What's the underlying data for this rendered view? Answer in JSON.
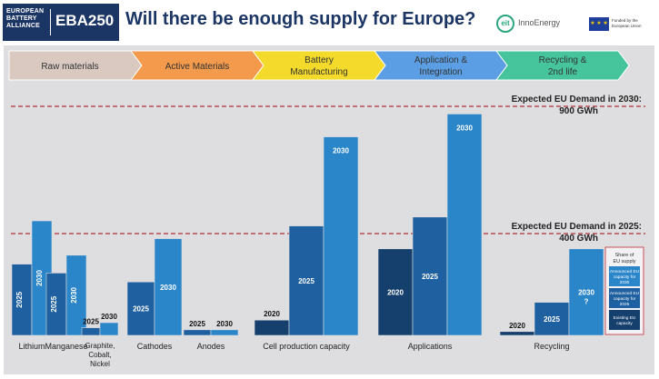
{
  "header": {
    "alliance_lines": [
      "EUROPEAN",
      "BATTERY",
      "ALLIANCE"
    ],
    "eba_label": "EBA250",
    "title": "Will there be enough supply for Europe?",
    "innoenergy_mark": "eit",
    "innoenergy_label": "InnoEnergy",
    "eu_flag_stars": "★ ★ ★",
    "eu_funded": "Funded by the European Union"
  },
  "value_chain": [
    {
      "line1": "Raw materials",
      "line2": "",
      "color": "#d9c9c1"
    },
    {
      "line1": "Active Materials",
      "line2": "",
      "color": "#f39a4c"
    },
    {
      "line1": "Battery",
      "line2": "Manufacturing",
      "color": "#f4da2a"
    },
    {
      "line1": "Application &",
      "line2": "Integration",
      "color": "#5b9ee3"
    },
    {
      "line1": "Recycling &",
      "line2": "2nd life",
      "color": "#46c49c"
    }
  ],
  "chart_data": {
    "type": "bar",
    "demand_lines": [
      {
        "label": "Expected EU Demand in 2030:",
        "value_label": "900 GWh",
        "value": 900
      },
      {
        "label": "Expected EU Demand in 2025:",
        "value_label": "400 GWh",
        "value": 400
      }
    ],
    "categories": [
      {
        "name": "Lithium",
        "bars": [
          {
            "label": "2025",
            "value": 280
          },
          {
            "label": "2030",
            "value": 450
          }
        ]
      },
      {
        "name": "Manganese",
        "bars": [
          {
            "label": "2025",
            "value": 245
          },
          {
            "label": "2030",
            "value": 315
          }
        ]
      },
      {
        "name": "Graphite, Cobalt, Nickel",
        "bars": [
          {
            "label": "2025",
            "value": 30
          },
          {
            "label": "2030",
            "value": 50
          }
        ]
      },
      {
        "name": "Cathodes",
        "bars": [
          {
            "label": "2025",
            "value": 210
          },
          {
            "label": "2030",
            "value": 380
          }
        ]
      },
      {
        "name": "Anodes",
        "bars": [
          {
            "label": "2025",
            "value": 22
          },
          {
            "label": "2030",
            "value": 22
          }
        ]
      },
      {
        "name": "Cell production capacity",
        "bars": [
          {
            "label": "2020",
            "value": 60
          },
          {
            "label": "2025",
            "value": 430
          },
          {
            "label": "2030",
            "value": 780
          }
        ]
      },
      {
        "name": "Applications",
        "bars": [
          {
            "label": "2020",
            "value": 340
          },
          {
            "label": "2025",
            "value": 465
          },
          {
            "label": "2030",
            "value": 870
          }
        ]
      },
      {
        "name": "Recycling",
        "bars": [
          {
            "label": "2020",
            "value": 15
          },
          {
            "label": "2025",
            "value": 130
          },
          {
            "label": "2030",
            "value": 340,
            "note": "?"
          }
        ]
      }
    ],
    "legend": {
      "title": "Share of EU supply",
      "items": [
        {
          "label": "Announced EU capacity for 2030",
          "color": "#2a86c9"
        },
        {
          "label": "Announced EU capacity for 2025",
          "color": "#1f60a0"
        },
        {
          "label": "Existing EU capacity",
          "color": "#153f6d"
        }
      ]
    },
    "colors": {
      "2020": "#153f6d",
      "2025": "#1f60a0",
      "2030": "#2a86c9",
      "demand_line": "#b84a52"
    },
    "ylim": [
      0,
      1000
    ]
  }
}
